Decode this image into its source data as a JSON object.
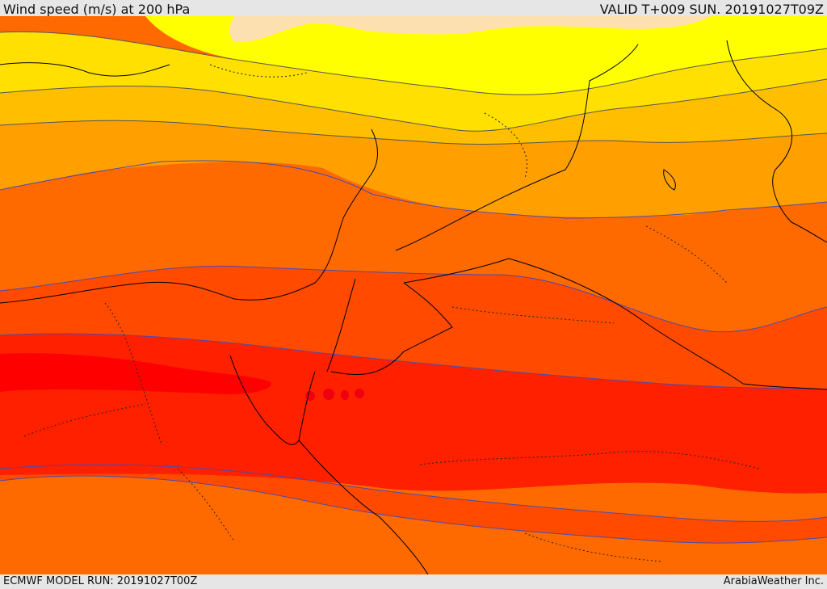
{
  "header": {
    "title": "Wind speed (m/s) at 200 hPa",
    "valid": "VALID T+009 SUN. 20191027T09Z"
  },
  "footer": {
    "model_run": "ECMWF MODEL RUN: 20191027T00Z",
    "credit": "ArabiaWeather Inc."
  },
  "colors": {
    "band_pale": "#fde0b0",
    "band_yellow": "#ffff00",
    "band_gold": "#ffe000",
    "band_amber": "#ffbf00",
    "band_orange": "#ff9f00",
    "band_dark_orange": "#ff6a00",
    "band_red_orange": "#ff4a00",
    "band_red": "#ff2000",
    "band_core": "#ff0000",
    "contour": "#4a4ab0",
    "coastline": "#000000"
  }
}
